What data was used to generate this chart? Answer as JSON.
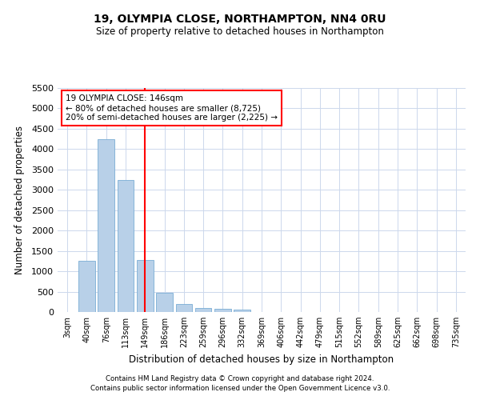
{
  "title1": "19, OLYMPIA CLOSE, NORTHAMPTON, NN4 0RU",
  "title2": "Size of property relative to detached houses in Northampton",
  "xlabel": "Distribution of detached houses by size in Northampton",
  "ylabel": "Number of detached properties",
  "categories": [
    "3sqm",
    "40sqm",
    "76sqm",
    "113sqm",
    "149sqm",
    "186sqm",
    "223sqm",
    "259sqm",
    "296sqm",
    "332sqm",
    "369sqm",
    "406sqm",
    "442sqm",
    "479sqm",
    "515sqm",
    "552sqm",
    "589sqm",
    "625sqm",
    "662sqm",
    "698sqm",
    "735sqm"
  ],
  "values": [
    0,
    1250,
    4250,
    3250,
    1275,
    475,
    200,
    100,
    75,
    50,
    0,
    0,
    0,
    0,
    0,
    0,
    0,
    0,
    0,
    0,
    0
  ],
  "bar_color": "#b8d0e8",
  "bar_edge_color": "#7aadd4",
  "red_line_index": 4,
  "ylim": [
    0,
    5500
  ],
  "yticks": [
    0,
    500,
    1000,
    1500,
    2000,
    2500,
    3000,
    3500,
    4000,
    4500,
    5000,
    5500
  ],
  "annotation_title": "19 OLYMPIA CLOSE: 146sqm",
  "annotation_line1": "← 80% of detached houses are smaller (8,725)",
  "annotation_line2": "20% of semi-detached houses are larger (2,225) →",
  "footer1": "Contains HM Land Registry data © Crown copyright and database right 2024.",
  "footer2": "Contains public sector information licensed under the Open Government Licence v3.0.",
  "bg_color": "#ffffff",
  "grid_color": "#ccd8ec"
}
